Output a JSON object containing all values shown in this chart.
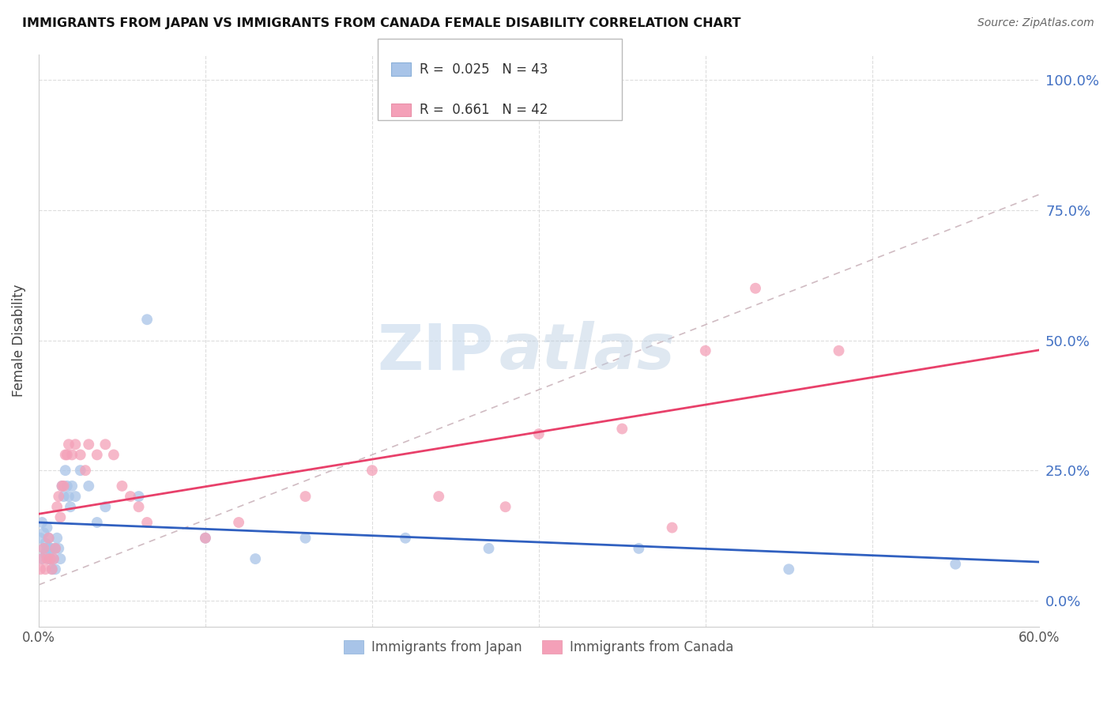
{
  "title": "IMMIGRANTS FROM JAPAN VS IMMIGRANTS FROM CANADA FEMALE DISABILITY CORRELATION CHART",
  "source": "Source: ZipAtlas.com",
  "ylabel": "Female Disability",
  "watermark_zip": "ZIP",
  "watermark_atlas": "atlas",
  "legend1_label": "Immigrants from Japan",
  "legend2_label": "Immigrants from Canada",
  "R_japan": "0.025",
  "N_japan": "43",
  "R_canada": "0.661",
  "N_canada": "42",
  "color_japan": "#a8c4e8",
  "color_canada": "#f4a0b8",
  "line_japan": "#3060c0",
  "line_canada": "#e8406a",
  "line_dashed_color": "#c8b0b8",
  "right_axis_color": "#4472c4",
  "background_color": "#ffffff",
  "japan_x": [
    0.001,
    0.002,
    0.002,
    0.003,
    0.003,
    0.004,
    0.004,
    0.005,
    0.005,
    0.006,
    0.006,
    0.007,
    0.007,
    0.008,
    0.008,
    0.009,
    0.01,
    0.01,
    0.011,
    0.012,
    0.013,
    0.014,
    0.015,
    0.016,
    0.017,
    0.018,
    0.019,
    0.02,
    0.022,
    0.025,
    0.03,
    0.035,
    0.04,
    0.06,
    0.065,
    0.1,
    0.13,
    0.16,
    0.22,
    0.27,
    0.36,
    0.45,
    0.55
  ],
  "japan_y": [
    0.12,
    0.08,
    0.15,
    0.1,
    0.13,
    0.09,
    0.11,
    0.1,
    0.14,
    0.08,
    0.12,
    0.1,
    0.08,
    0.06,
    0.1,
    0.08,
    0.06,
    0.1,
    0.12,
    0.1,
    0.08,
    0.22,
    0.2,
    0.25,
    0.22,
    0.2,
    0.18,
    0.22,
    0.2,
    0.25,
    0.22,
    0.15,
    0.18,
    0.2,
    0.54,
    0.12,
    0.08,
    0.12,
    0.12,
    0.1,
    0.1,
    0.06,
    0.07
  ],
  "canada_x": [
    0.001,
    0.002,
    0.003,
    0.004,
    0.005,
    0.006,
    0.007,
    0.008,
    0.009,
    0.01,
    0.011,
    0.012,
    0.013,
    0.014,
    0.015,
    0.016,
    0.017,
    0.018,
    0.02,
    0.022,
    0.025,
    0.028,
    0.03,
    0.035,
    0.04,
    0.045,
    0.05,
    0.055,
    0.06,
    0.065,
    0.1,
    0.12,
    0.16,
    0.2,
    0.24,
    0.28,
    0.3,
    0.35,
    0.38,
    0.4,
    0.43,
    0.48
  ],
  "canada_y": [
    0.06,
    0.08,
    0.1,
    0.06,
    0.08,
    0.12,
    0.08,
    0.06,
    0.08,
    0.1,
    0.18,
    0.2,
    0.16,
    0.22,
    0.22,
    0.28,
    0.28,
    0.3,
    0.28,
    0.3,
    0.28,
    0.25,
    0.3,
    0.28,
    0.3,
    0.28,
    0.22,
    0.2,
    0.18,
    0.15,
    0.12,
    0.15,
    0.2,
    0.25,
    0.2,
    0.18,
    0.32,
    0.33,
    0.14,
    0.48,
    0.6,
    0.48
  ],
  "xlim": [
    0.0,
    0.6
  ],
  "ylim": [
    -0.05,
    1.05
  ],
  "ytick_vals": [
    0.0,
    0.25,
    0.5,
    0.75,
    1.0
  ],
  "ytick_labels_right": [
    "0.0%",
    "25.0%",
    "50.0%",
    "75.0%",
    "100.0%"
  ],
  "xtick_vals": [
    0.0,
    0.1,
    0.2,
    0.3,
    0.4,
    0.5,
    0.6
  ],
  "xtick_labels": [
    "0.0%",
    "",
    "",
    "",
    "",
    "",
    "60.0%"
  ]
}
